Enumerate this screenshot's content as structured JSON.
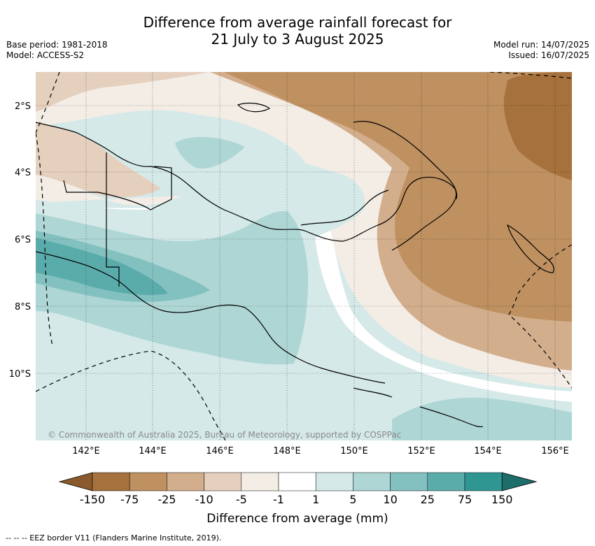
{
  "header": {
    "title_line1": "Difference from average rainfall forecast for",
    "title_line2": "21 July to 3 August 2025",
    "base_period": "Base period: 1981-2018",
    "model": "Model: ACCESS-S2",
    "model_run": "Model run: 14/07/2025",
    "issued": "Issued: 16/07/2025"
  },
  "map": {
    "lat_labels": [
      "2°S",
      "4°S",
      "6°S",
      "8°S",
      "10°S"
    ],
    "lon_labels": [
      "142°E",
      "144°E",
      "146°E",
      "148°E",
      "150°E",
      "152°E",
      "154°E",
      "156°E"
    ],
    "copyright": "© Commonwealth of Australia 2025, Bureau of Meteorology, supported by COSPPac",
    "colors": {
      "dry_150": "#a6713c",
      "dry_75": "#bf9060",
      "dry_25": "#d2ae8c",
      "dry_10": "#e5cfbd",
      "dry_5": "#f3ede6",
      "neutral": "#ffffff",
      "wet_1": "#d4e9e8",
      "wet_5": "#aed6d5",
      "wet_10": "#83c1c0",
      "wet_25": "#5aacab",
      "wet_75": "#2f9692",
      "wet_150": "#1d6e6b"
    }
  },
  "colorbar": {
    "labels": [
      "-150",
      "-75",
      "-25",
      "-10",
      "-5",
      "-1",
      "1",
      "5",
      "10",
      "25",
      "75",
      "150"
    ],
    "title": "Difference from average (mm)"
  },
  "footer": {
    "eez_note": "--  --  -- EEZ border V11 (Flanders Marine Institute, 2019)."
  }
}
